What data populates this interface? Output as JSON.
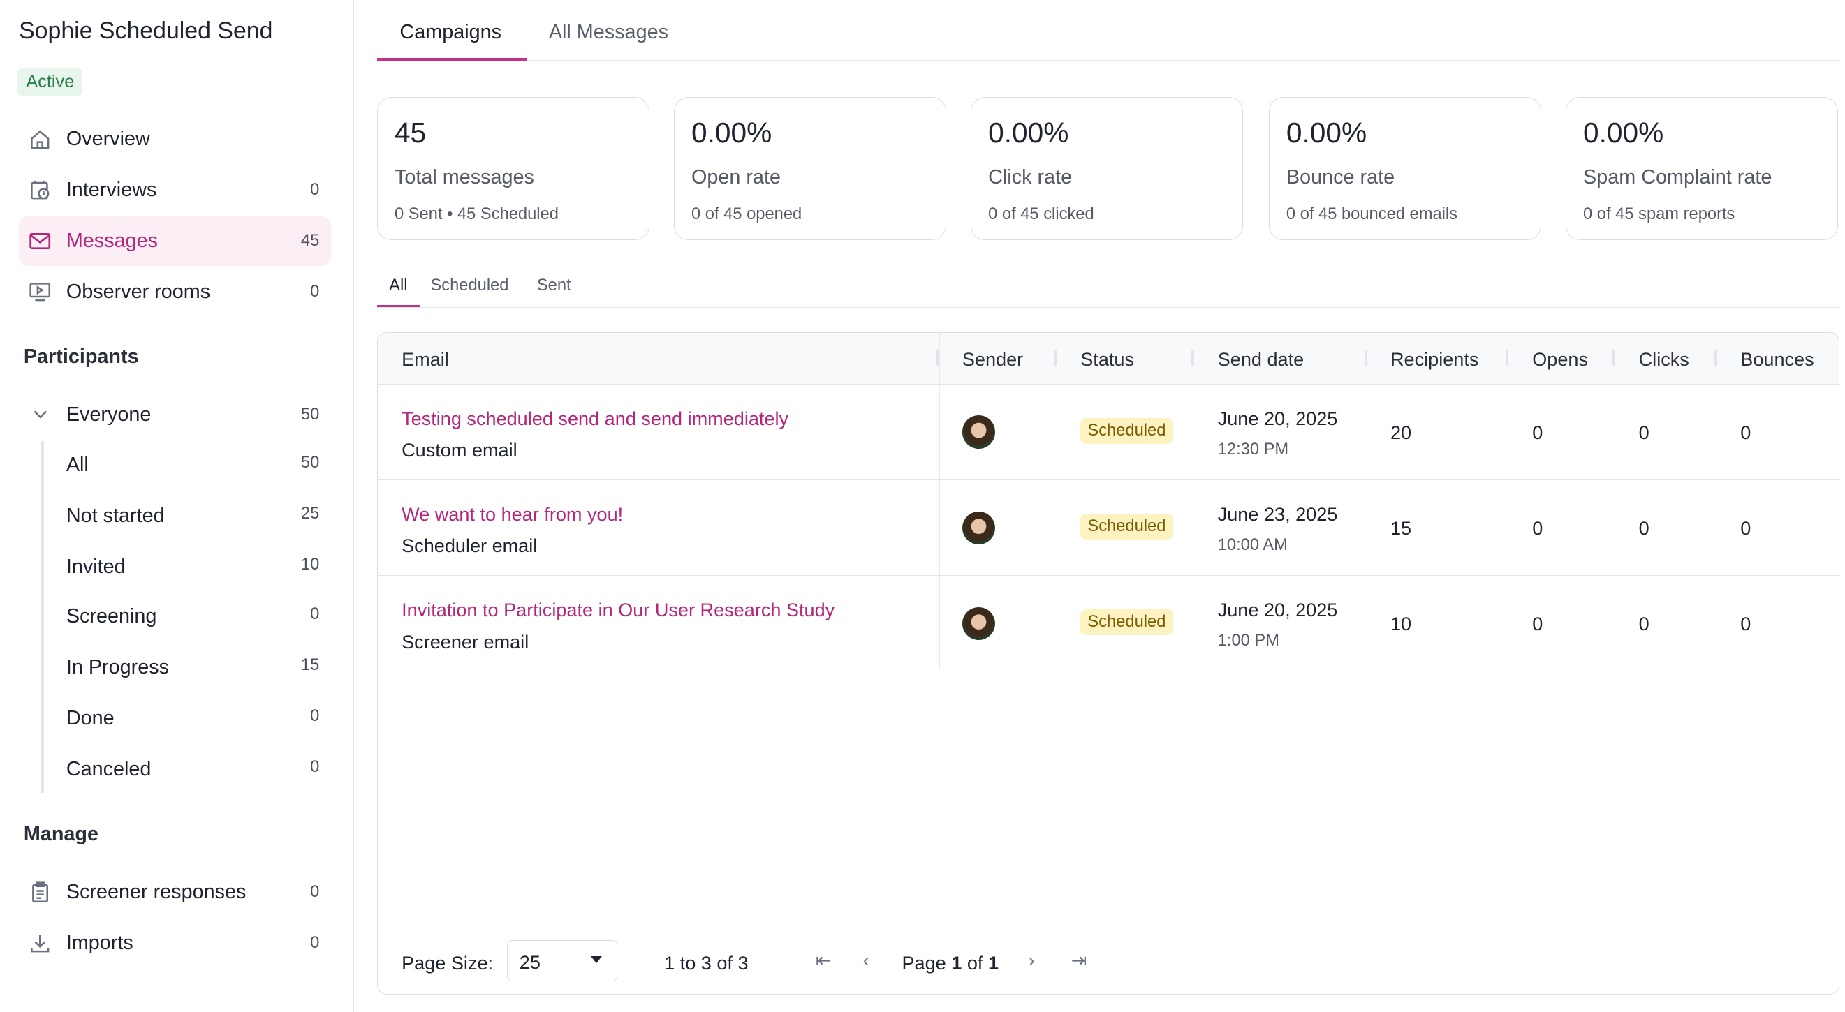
{
  "sidebar": {
    "title": "Sophie Scheduled Send",
    "status": "Active",
    "nav": [
      {
        "label": "Overview",
        "count": null,
        "icon": "home-icon"
      },
      {
        "label": "Interviews",
        "count": "0",
        "icon": "calendar-clock-icon"
      },
      {
        "label": "Messages",
        "count": "45",
        "icon": "mail-icon"
      },
      {
        "label": "Observer rooms",
        "count": "0",
        "icon": "monitor-play-icon"
      }
    ],
    "participants_heading": "Participants",
    "everyone": {
      "label": "Everyone",
      "count": "50"
    },
    "groups": [
      {
        "label": "All",
        "count": "50"
      },
      {
        "label": "Not started",
        "count": "25"
      },
      {
        "label": "Invited",
        "count": "10"
      },
      {
        "label": "Screening",
        "count": "0"
      },
      {
        "label": "In Progress",
        "count": "15"
      },
      {
        "label": "Done",
        "count": "0"
      },
      {
        "label": "Canceled",
        "count": "0"
      }
    ],
    "manage_heading": "Manage",
    "manage": [
      {
        "label": "Screener responses",
        "count": "0"
      },
      {
        "label": "Imports",
        "count": "0"
      }
    ]
  },
  "tabs": [
    "Campaigns",
    "All Messages"
  ],
  "cards": [
    {
      "value": "45",
      "label": "Total messages",
      "sub": "0 Sent • 45 Scheduled"
    },
    {
      "value": "0.00%",
      "label": "Open rate",
      "sub": "0 of 45 opened"
    },
    {
      "value": "0.00%",
      "label": "Click rate",
      "sub": "0 of 45 clicked"
    },
    {
      "value": "0.00%",
      "label": "Bounce rate",
      "sub": "0 of 45 bounced emails"
    },
    {
      "value": "0.00%",
      "label": "Spam Complaint rate",
      "sub": "0 of 45 spam reports"
    }
  ],
  "subtabs": [
    "All",
    "Scheduled",
    "Sent"
  ],
  "table": {
    "columns": [
      "Email",
      "Sender",
      "Status",
      "Send date",
      "Recipients",
      "Opens",
      "Clicks",
      "Bounces"
    ],
    "rows": [
      {
        "subject": "Testing scheduled send and send immediately",
        "type": "Custom email",
        "status": "Scheduled",
        "date": "June 20, 2025",
        "time": "12:30 PM",
        "recipients": "20",
        "opens": "0",
        "clicks": "0",
        "bounces": "0"
      },
      {
        "subject": "We want to hear from you!",
        "type": "Scheduler email",
        "status": "Scheduled",
        "date": "June 23, 2025",
        "time": "10:00 AM",
        "recipients": "15",
        "opens": "0",
        "clicks": "0",
        "bounces": "0"
      },
      {
        "subject": "Invitation to Participate in Our User Research Study",
        "type": "Screener email",
        "status": "Scheduled",
        "date": "June 20, 2025",
        "time": "1:00 PM",
        "recipients": "10",
        "opens": "0",
        "clicks": "0",
        "bounces": "0"
      }
    ]
  },
  "footer": {
    "page_size_label": "Page Size:",
    "page_size": "25",
    "range": "1 to 3 of 3",
    "page_prefix": "Page",
    "page": "1",
    "page_of": "of",
    "pages": "1"
  },
  "colors": {
    "accent": "#b5267b",
    "active_bg": "#fbeff5",
    "scheduled_bg": "#fcf3c0",
    "active_badge": "#e7f5ec"
  }
}
